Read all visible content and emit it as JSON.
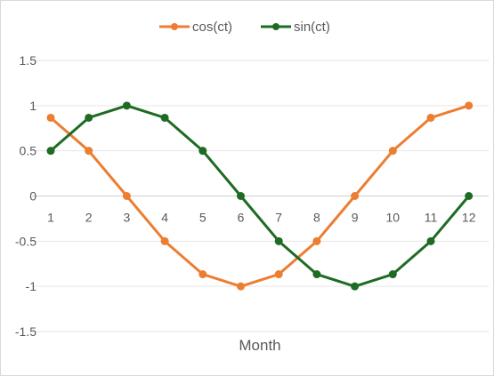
{
  "chart_data": {
    "type": "line",
    "title": "",
    "xlabel": "Month",
    "ylabel": "",
    "x": [
      1,
      2,
      3,
      4,
      5,
      6,
      7,
      8,
      9,
      10,
      11,
      12
    ],
    "ylim": [
      -1.5,
      1.5
    ],
    "yticks": [
      "1.5",
      "1",
      "0.5",
      "0",
      "-0.5",
      "-1",
      "-1.5"
    ],
    "ytick_values": [
      1.5,
      1,
      0.5,
      0,
      -0.5,
      -1,
      -1.5
    ],
    "xticks": [
      "1",
      "2",
      "3",
      "4",
      "5",
      "6",
      "7",
      "8",
      "9",
      "10",
      "11",
      "12"
    ],
    "grid": true,
    "legend_position": "top",
    "series": [
      {
        "name": "cos(ct)",
        "color": "#ED7D31",
        "values": [
          0.866,
          0.5,
          0,
          -0.5,
          -0.866,
          -1,
          -0.866,
          -0.5,
          0,
          0.5,
          0.866,
          1
        ]
      },
      {
        "name": "sin(ct)",
        "color": "#1E6B24",
        "values": [
          0.5,
          0.866,
          1,
          0.866,
          0.5,
          0,
          -0.5,
          -0.866,
          -1,
          -0.866,
          -0.5,
          0
        ]
      }
    ]
  }
}
